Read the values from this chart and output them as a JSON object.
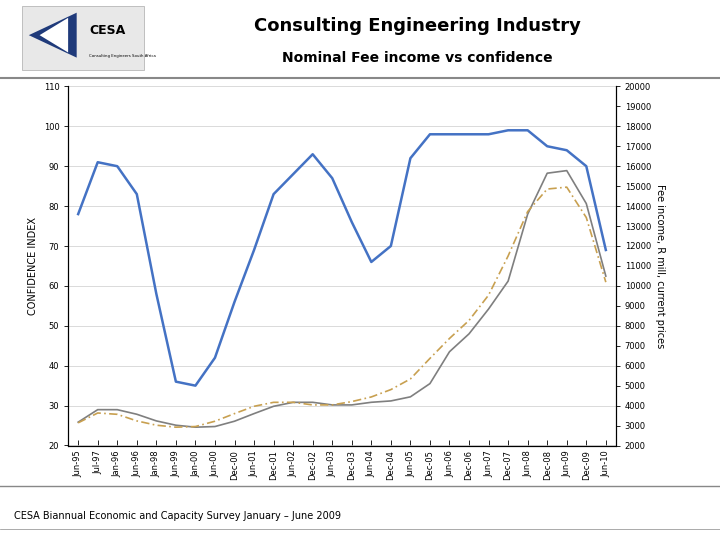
{
  "title": "Consulting Engineering Industry",
  "subtitle": "Nominal Fee income vs confidence",
  "ylabel_left": "CONFIDENCE INDEX",
  "ylabel_right": "Fee income, R mill, current prices",
  "footer": "CESA Biannual Economic and Capacity Survey January – June 2009",
  "xlabels": [
    "Jun-95",
    "Jul-97",
    "Jan-96",
    "Jun-96",
    "Jan-98",
    "Jun-99",
    "Jan-00",
    "Jun-00",
    "Dec-00",
    "Jun-01",
    "Dec-01",
    "Jun-02",
    "Dec-02",
    "Jun-03",
    "Dec-03",
    "Jun-04",
    "Dec-04",
    "Jun-05",
    "Dec-05",
    "Jun-06",
    "Dec-06",
    "Jun-07",
    "Dec-07",
    "Jun-08",
    "Dec-08",
    "Jun-09",
    "Dec-09",
    "Jun-10"
  ],
  "confidence": [
    75,
    96,
    90,
    88,
    58,
    31,
    35,
    40,
    57,
    69,
    86,
    87,
    97,
    88,
    76,
    64,
    65,
    98,
    99,
    99,
    98,
    98,
    99,
    101,
    95,
    94,
    97,
    64
  ],
  "fee_income_right": [
    3000,
    4000,
    3800,
    3600,
    3200,
    3000,
    2900,
    2900,
    3200,
    3600,
    4000,
    4200,
    4200,
    4000,
    4000,
    4200,
    4200,
    4400,
    4800,
    7000,
    7400,
    9000,
    9600,
    14000,
    16000,
    16000,
    14800,
    9600
  ],
  "trend_right": [
    3000,
    3800,
    3600,
    3200,
    3000,
    2900,
    2900,
    3200,
    3600,
    4000,
    4200,
    4200,
    4000,
    4000,
    4200,
    4400,
    4800,
    5200,
    6400,
    7400,
    8200,
    9400,
    11400,
    14000,
    15000,
    15200,
    14000,
    9400
  ],
  "ylim_left": [
    20,
    110
  ],
  "ylim_right": [
    2000,
    20000
  ],
  "yticks_left": [
    20,
    30,
    40,
    50,
    60,
    70,
    80,
    90,
    100,
    110
  ],
  "yticks_right": [
    2000,
    3000,
    4000,
    5000,
    6000,
    7000,
    8000,
    9000,
    10000,
    11000,
    12000,
    13000,
    14000,
    15000,
    16000,
    17000,
    18000,
    19000,
    20000
  ],
  "confidence_color": "#4472C4",
  "fee_income_color": "#7F7F7F",
  "trend_color": "#C8A050",
  "bg_color": "#FFFFFF",
  "plot_bg": "#FFFFFF",
  "title_fontsize": 13,
  "subtitle_fontsize": 10,
  "axis_label_fontsize": 7,
  "tick_fontsize": 6,
  "legend_fontsize": 7,
  "footer_fontsize": 7,
  "header_line_color": "#888888",
  "footer_line_color": "#888888"
}
